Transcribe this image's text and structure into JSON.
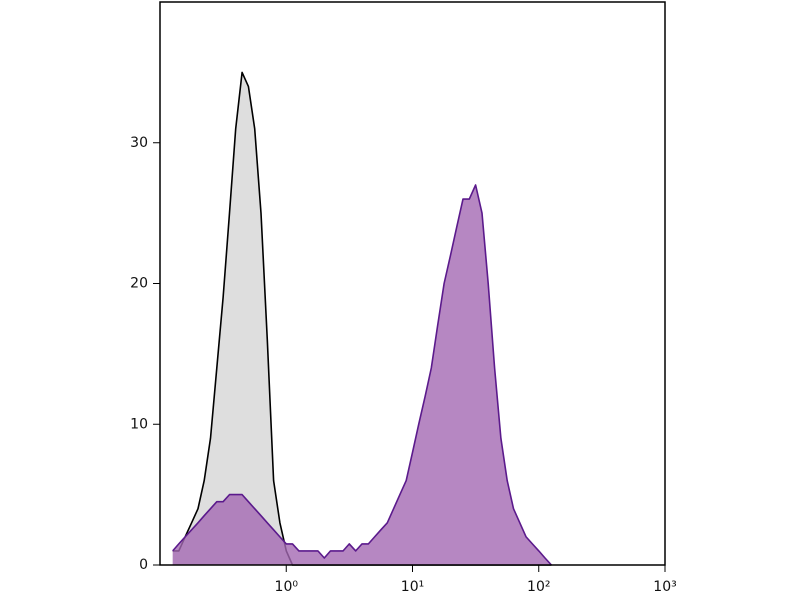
{
  "chart_data": {
    "type": "line",
    "x": [
      0.126,
      0.141,
      0.158,
      0.178,
      0.2,
      0.224,
      0.251,
      0.282,
      0.316,
      0.355,
      0.398,
      0.447,
      0.501,
      0.562,
      0.631,
      0.708,
      0.794,
      0.891,
      1.0,
      1.12,
      1.26,
      1.41,
      1.58,
      1.78,
      2.0,
      2.24,
      2.51,
      2.82,
      3.16,
      3.55,
      3.98,
      4.47,
      5.01,
      5.62,
      6.31,
      7.08,
      7.94,
      8.91,
      10.0,
      11.2,
      12.6,
      14.1,
      15.8,
      17.8,
      20.0,
      22.4,
      25.1,
      28.2,
      31.6,
      35.5,
      39.8,
      44.7,
      50.1,
      56.2,
      63.1,
      70.8,
      79.4,
      89.1,
      100,
      112,
      126
    ],
    "series": [
      {
        "color": "#000000",
        "fill": "#dedede",
        "values": [
          1,
          1,
          2,
          3,
          4,
          6,
          9,
          14,
          19,
          25,
          31,
          35,
          34,
          31,
          25,
          16,
          6,
          3,
          1,
          0,
          0,
          0,
          0,
          0,
          0,
          0,
          0,
          0,
          0,
          0,
          0,
          0,
          0,
          0,
          0,
          0,
          0,
          0,
          0,
          0,
          0,
          0,
          0,
          0,
          0,
          0,
          0,
          0,
          0,
          0,
          0,
          0,
          0,
          0,
          0,
          0,
          0,
          0,
          0,
          0,
          0
        ]
      },
      {
        "color": "#5b1a8c",
        "fill": "#a469b3",
        "values": [
          1,
          1.5,
          2,
          2.5,
          3,
          3.5,
          4,
          4.5,
          4.5,
          5,
          5,
          5,
          4.5,
          4,
          3.5,
          3,
          2.5,
          2,
          1.5,
          1.5,
          1,
          1,
          1,
          1,
          0.5,
          1,
          1,
          1,
          1.5,
          1,
          1.5,
          1.5,
          2,
          2.5,
          3,
          4,
          5,
          6,
          8,
          10,
          12,
          14,
          17,
          20,
          22,
          24,
          26,
          26,
          27,
          25,
          20,
          14,
          9,
          6,
          4,
          3,
          2,
          1.5,
          1,
          0.5,
          0
        ]
      }
    ],
    "xlog": true,
    "xlim": [
      0.1,
      1000
    ],
    "xticks": [
      {
        "value": 1,
        "label": "10⁰"
      },
      {
        "value": 10,
        "label": "10¹"
      },
      {
        "value": 100,
        "label": "10²"
      },
      {
        "value": 1000,
        "label": "10³"
      }
    ],
    "ylim": [
      0,
      40
    ],
    "yticks": [
      0,
      10,
      20,
      30
    ]
  }
}
